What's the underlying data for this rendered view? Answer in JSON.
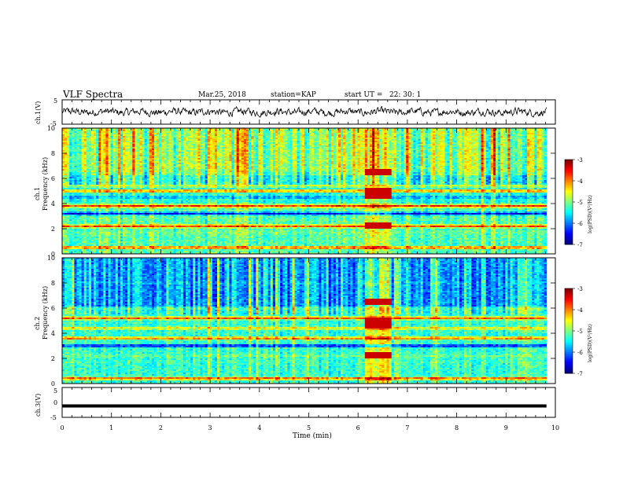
{
  "header": {
    "title": "VLF Spectra",
    "date": "Mar.25, 2018",
    "station": "station=KAP",
    "start_ut": "start UT =   22: 30: 1"
  },
  "chart_data": {
    "type": "heatmap",
    "x_axis": {
      "label": "Time (min)",
      "range": [
        0,
        10
      ],
      "ticks": [
        "0",
        "1",
        "2",
        "3",
        "4",
        "5",
        "6",
        "7",
        "8",
        "9",
        "10"
      ]
    },
    "panels": [
      {
        "id": "ch1-waveform",
        "type": "line",
        "ylabel": "ch.1(V)",
        "ylim": [
          -5,
          5
        ],
        "y_ticks": [
          "5",
          "-5"
        ],
        "description_values": {
          "mean": 0,
          "amplitude_approx": 2
        }
      },
      {
        "id": "ch1-spectrogram",
        "type": "heatmap",
        "ylabel_top": "ch.1",
        "ylabel": "Frequency (kHz)",
        "ylim": [
          0,
          10
        ],
        "y_ticks": [
          "0",
          "2",
          "4",
          "6",
          "8",
          "10"
        ],
        "colorbar": {
          "label": "log(PSD)(V²/Hz)",
          "range": [
            -7,
            -3
          ],
          "ticks": [
            "-3",
            "-4",
            "-5",
            "-6",
            "-7"
          ]
        },
        "bands_khz": [
          {
            "f": 0.5,
            "level": -3.5
          },
          {
            "f": 1.7,
            "level": -5.0
          },
          {
            "f": 2.2,
            "level": -3.5
          },
          {
            "f": 3.2,
            "level": -6.8
          },
          {
            "f": 3.8,
            "level": -3.4
          },
          {
            "f": 4.5,
            "level": -6.0
          },
          {
            "f": 5.0,
            "level": -3.6
          },
          {
            "f": 5.4,
            "level": -4.5
          },
          {
            "f": 6.4,
            "level": -5.2
          },
          {
            "f": 8.5,
            "level": -5.0
          }
        ],
        "event": {
          "t_start": 6.15,
          "t_end": 6.7
        }
      },
      {
        "id": "ch2-spectrogram",
        "type": "heatmap",
        "ylabel_top": "ch.2",
        "ylabel": "Frequency (kHz)",
        "ylim": [
          0,
          10
        ],
        "y_ticks": [
          "0",
          "2",
          "4",
          "6",
          "8",
          "10"
        ],
        "colorbar": {
          "label": "log(PSD)(V²/Hz)",
          "range": [
            -7,
            -3
          ],
          "ticks": [
            "-3",
            "-4",
            "-5",
            "-6",
            "-7"
          ]
        },
        "bands_khz": [
          {
            "f": 0.4,
            "level": -3.4
          },
          {
            "f": 1.7,
            "level": -5.2
          },
          {
            "f": 2.2,
            "level": -5.0
          },
          {
            "f": 3.0,
            "level": -6.8
          },
          {
            "f": 3.6,
            "level": -3.6
          },
          {
            "f": 4.4,
            "level": -4.2
          },
          {
            "f": 5.2,
            "level": -3.6
          },
          {
            "f": 6.0,
            "level": -5.0
          },
          {
            "f": 8.0,
            "level": -5.6
          }
        ],
        "event": {
          "t_start": 6.15,
          "t_end": 6.7
        }
      },
      {
        "id": "ch3-waveform",
        "type": "line",
        "ylabel": "ch.3(V)",
        "ylim": [
          -5,
          5
        ],
        "y_ticks": [
          "5",
          "0",
          "-5"
        ],
        "description_values": {
          "constant": -1.2
        }
      }
    ]
  }
}
